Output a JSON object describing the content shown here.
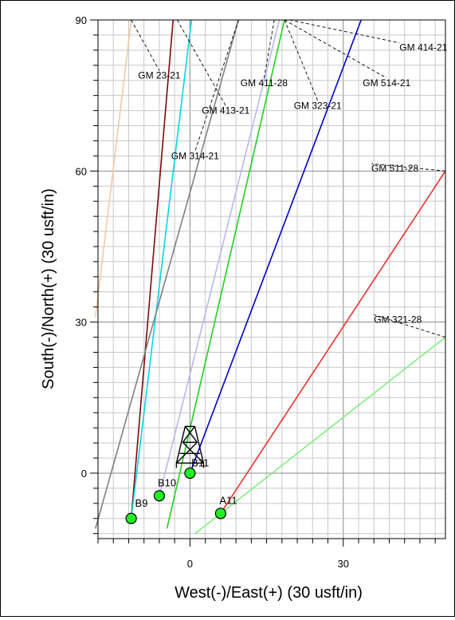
{
  "chart_data": {
    "type": "line",
    "xlabel": "West(-)/East(+) (30 usft/in)",
    "ylabel": "South(-)/North(+) (30 usft/in)",
    "xlim": [
      -18,
      50
    ],
    "ylim": [
      -13,
      90
    ],
    "x_ticks": [
      0,
      30
    ],
    "y_ticks": [
      0,
      30,
      60,
      90
    ],
    "grid": true,
    "grid_minor_step": 3,
    "series": [
      {
        "name": "GM 23-21",
        "color": "#f5c8a8",
        "points": [
          [
            -18.5,
            31
          ],
          [
            -11.5,
            90
          ]
        ],
        "label_anchor": [
          -11.5,
          90
        ],
        "label_pos": [
          -6,
          79
        ],
        "label_align": "middle"
      },
      {
        "name": "",
        "color": "#7a0a0a",
        "points": [
          [
            -11.5,
            -9
          ],
          [
            -3.3,
            90
          ]
        ]
      },
      {
        "name": "GM 413-21",
        "color": "#00d8e8",
        "points": [
          [
            -11.5,
            -9
          ],
          [
            0.3,
            90
          ]
        ],
        "label_anchor": [
          -2.5,
          90
        ],
        "label_pos": [
          7,
          72
        ],
        "label_align": "middle"
      },
      {
        "name": "GM 314-21",
        "color": "#808080",
        "points": [
          [
            -18.5,
            -11
          ],
          [
            9.5,
            90
          ]
        ],
        "label_anchor": [
          9.5,
          90
        ],
        "label_pos": [
          1,
          63
        ],
        "label_align": "middle"
      },
      {
        "name": "",
        "color": "#b8b8f0",
        "points": [
          [
            -6,
            -4.5
          ],
          [
            17.5,
            90
          ]
        ]
      },
      {
        "name": "GM 411-28",
        "color": "#20d020",
        "points": [
          [
            -4.5,
            -11
          ],
          [
            18.5,
            90
          ]
        ],
        "label_anchor": [
          16.5,
          90
        ],
        "label_pos": [
          14.5,
          77.5
        ],
        "label_align": "middle"
      },
      {
        "name": "GM 323-21",
        "color": "#0000cc",
        "points": [
          [
            0,
            0
          ],
          [
            33.5,
            90
          ]
        ],
        "label_anchor": [
          18.5,
          90
        ],
        "label_pos": [
          25,
          73
        ],
        "label_align": "middle"
      },
      {
        "name": "GM 514-21",
        "color": "",
        "points": [],
        "label_anchor": [
          18.5,
          90
        ],
        "label_pos": [
          38.5,
          77.5
        ],
        "label_align": "middle"
      },
      {
        "name": "GM 414-21",
        "color": "",
        "points": [],
        "label_anchor": [
          19.5,
          90
        ],
        "label_pos": [
          41,
          84.5
        ],
        "label_align": "start"
      },
      {
        "name": "GM 511-28",
        "color": "#ee3030",
        "points": [
          [
            6,
            -8
          ],
          [
            50,
            60
          ]
        ],
        "label_anchor": [
          50,
          60
        ],
        "label_pos": [
          35.5,
          60.5
        ],
        "label_align": "start"
      },
      {
        "name": "GM 321-28",
        "color": "#80ee80",
        "points": [
          [
            1,
            -12
          ],
          [
            50,
            27
          ]
        ],
        "label_anchor": [
          50,
          27
        ],
        "label_pos": [
          36,
          30.5
        ],
        "label_align": "start"
      }
    ],
    "wells": [
      {
        "name": "B9",
        "x": -11.5,
        "y": -9,
        "label_pos": [
          -9.5,
          -6
        ]
      },
      {
        "name": "B10",
        "x": -6,
        "y": -4.5,
        "label_pos": [
          -4.5,
          -2
        ]
      },
      {
        "name": "B11",
        "x": 0,
        "y": 0,
        "label_pos": [
          2,
          2
        ]
      },
      {
        "name": "A11",
        "x": 6,
        "y": -8,
        "label_pos": [
          7.5,
          -5.5
        ]
      }
    ],
    "rig": {
      "x": 0,
      "y": 2
    }
  }
}
